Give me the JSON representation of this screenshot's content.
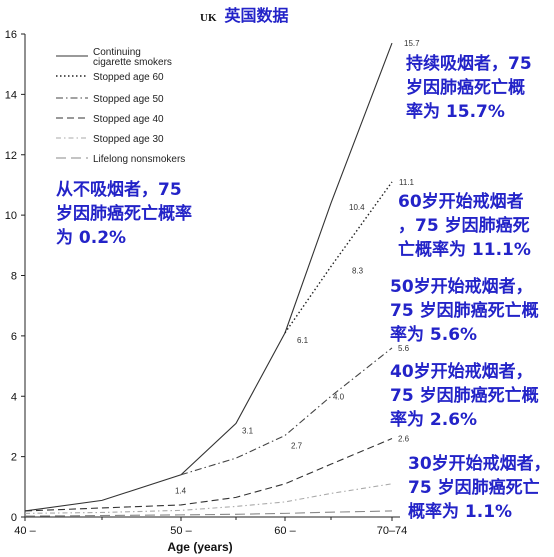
{
  "header": {
    "prefix": "UK",
    "title": "英国数据"
  },
  "chart_data": {
    "type": "line",
    "x": [
      "40",
      "45",
      "50",
      "55",
      "60",
      "65",
      "70–74"
    ],
    "xlabel": "Age (years)",
    "ylabel": "",
    "ylim": [
      0,
      16
    ],
    "yticks": [
      0,
      2,
      4,
      6,
      8,
      10,
      12,
      14,
      16
    ],
    "xticks": [
      "40 –",
      "50 –",
      "60 –",
      "70–74"
    ],
    "legend_position": "top-left",
    "series": [
      {
        "name": "Continuing cigarette smokers",
        "style": "solid",
        "values": [
          0.2,
          0.55,
          1.4,
          3.1,
          6.1,
          10.4,
          15.7
        ]
      },
      {
        "name": "Stopped age 60",
        "style": "dotted",
        "values": [
          null,
          null,
          null,
          null,
          6.1,
          8.3,
          11.1
        ]
      },
      {
        "name": "Stopped age 50",
        "style": "dashdot",
        "values": [
          null,
          null,
          1.4,
          1.95,
          2.7,
          4.0,
          5.6
        ]
      },
      {
        "name": "Stopped age 40",
        "style": "dashed",
        "values": [
          0.2,
          0.3,
          0.4,
          0.65,
          1.1,
          1.75,
          2.6
        ]
      },
      {
        "name": "Stopped age 30",
        "style": "dashdotlight",
        "values": [
          0.12,
          0.15,
          0.22,
          0.35,
          0.5,
          0.78,
          1.1
        ]
      },
      {
        "name": "Lifelong nonsmokers",
        "style": "longdash",
        "values": [
          0.03,
          0.05,
          0.07,
          0.09,
          0.12,
          0.16,
          0.2
        ]
      }
    ],
    "data_labels": [
      {
        "x": 2,
        "y": 1.4,
        "text": "1.4"
      },
      {
        "x": 3,
        "y": 3.1,
        "text": "3.1"
      },
      {
        "x": 4,
        "y": 6.1,
        "text": "6.1"
      },
      {
        "x": 4,
        "y": 2.7,
        "text": "2.7"
      },
      {
        "x": 5,
        "y": 10.4,
        "text": "10.4"
      },
      {
        "x": 5,
        "y": 8.3,
        "text": "8.3"
      },
      {
        "x": 5,
        "y": 4.0,
        "text": "4.0"
      },
      {
        "x": 6,
        "y": 15.7,
        "text": "15.7"
      },
      {
        "x": 6,
        "y": 11.1,
        "text": "11.1"
      },
      {
        "x": 6,
        "y": 5.6,
        "text": "5.6"
      },
      {
        "x": 6,
        "y": 2.6,
        "text": "2.6"
      }
    ]
  },
  "annotations": [
    {
      "id": "continuing",
      "text": "持续吸烟者，75\n岁因肺癌死亡概\n率为 15.7%"
    },
    {
      "id": "nonsmoker",
      "text": "从不吸烟者，75\n岁因肺癌死亡概率\n为 0.2%"
    },
    {
      "id": "stop60",
      "text": "60岁开始戒烟者\n，75 岁因肺癌死\n亡概率为 11.1%"
    },
    {
      "id": "stop50",
      "text": "50岁开始戒烟者，\n75 岁因肺癌死亡概\n率为 5.6%"
    },
    {
      "id": "stop40",
      "text": "40岁开始戒烟者，\n75 岁因肺癌死亡概\n率为 2.6%"
    },
    {
      "id": "stop30",
      "text": "30岁开始戒烟者，\n75 岁因肺癌死亡\n概率为 1.1%"
    }
  ]
}
